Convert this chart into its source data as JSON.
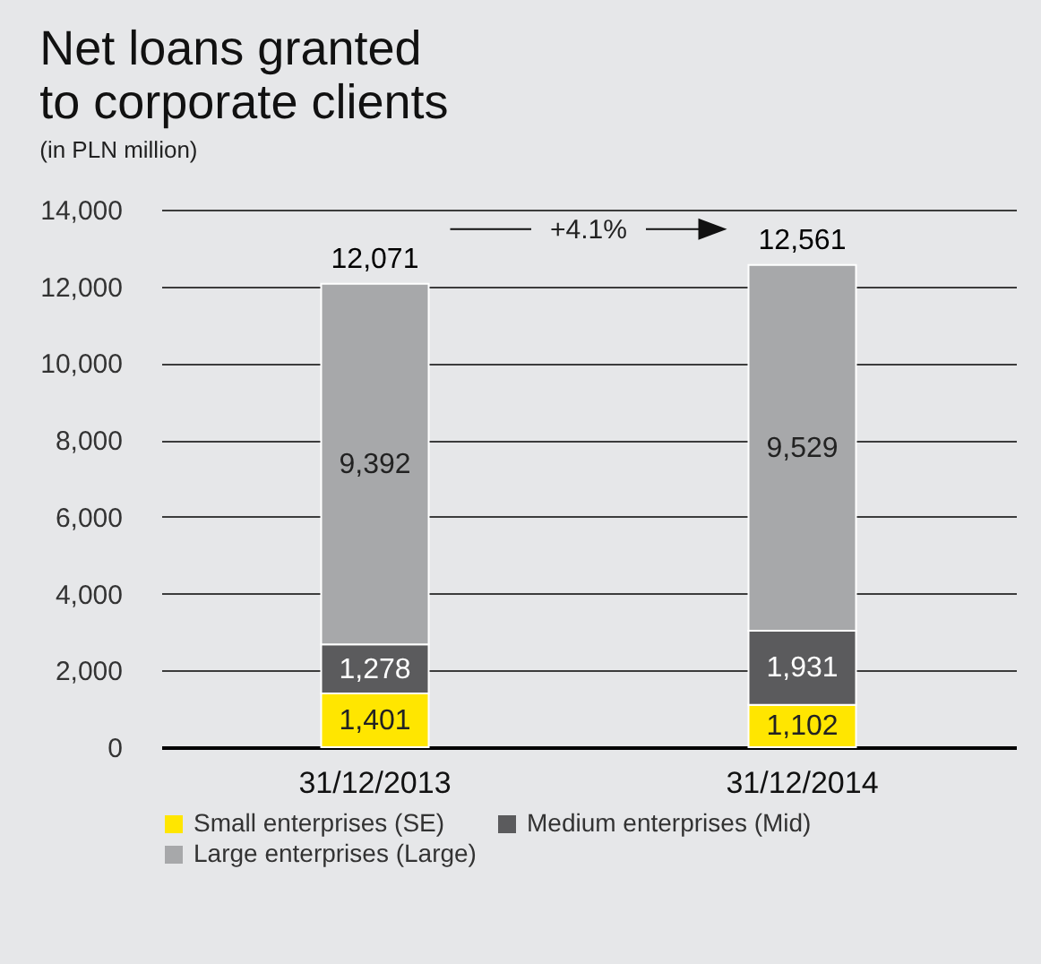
{
  "chart_data": {
    "type": "bar",
    "title": "Net loans granted\nto corporate clients",
    "subtitle": "(in PLN million)",
    "categories": [
      "31/12/2013",
      "31/12/2014"
    ],
    "series": [
      {
        "name": "Small enterprises (SE)",
        "color": "#ffe600",
        "values": [
          1401,
          1102
        ],
        "value_labels": [
          "1,401",
          "1,102"
        ]
      },
      {
        "name": "Medium enterprises (Mid)",
        "color": "#5b5b5d",
        "values": [
          1278,
          1931
        ],
        "value_labels": [
          "1,278",
          "1,931"
        ]
      },
      {
        "name": "Large enterprises (Large)",
        "color": "#a7a8aa",
        "values": [
          9392,
          9529
        ],
        "value_labels": [
          "9,392",
          "9,529"
        ]
      }
    ],
    "stacked": true,
    "totals": [
      "12,071",
      "12,561"
    ],
    "annotations": [
      "+4.1%"
    ],
    "ylim": [
      0,
      14000
    ],
    "yticks": [
      0,
      {
        "value": 2000,
        "label": "2,000"
      },
      {
        "value": 4000,
        "label": "4,000"
      },
      {
        "value": 6000,
        "label": "6,000"
      },
      {
        "value": 8000,
        "label": "8,000"
      },
      {
        "value": 10000,
        "label": "10,000"
      },
      {
        "value": 12000,
        "label": "12,000"
      },
      {
        "value": 14000,
        "label": "14,000"
      }
    ],
    "grid": "y",
    "legend": "bottom"
  }
}
